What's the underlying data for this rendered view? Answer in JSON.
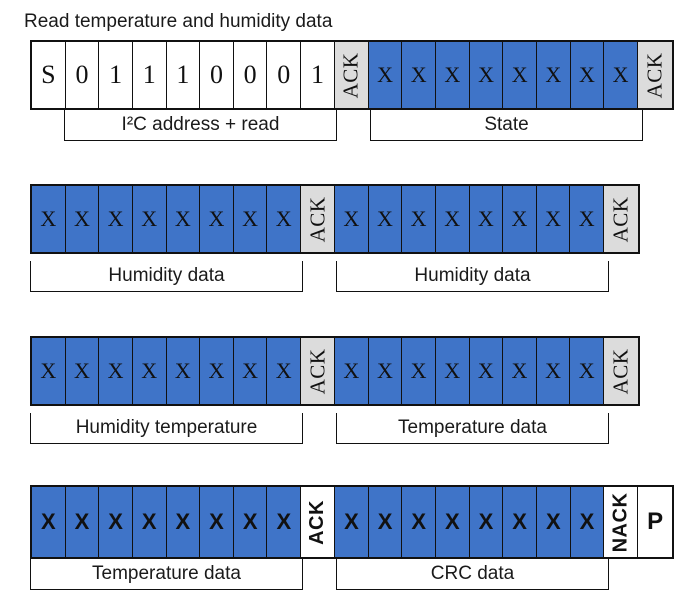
{
  "title": "Read temperature and humidity data",
  "row1": {
    "bits": [
      "S",
      "0",
      "1",
      "1",
      "1",
      "0",
      "0",
      "0",
      "1"
    ],
    "ack1": "ACK",
    "x": [
      "X",
      "X",
      "X",
      "X",
      "X",
      "X",
      "X",
      "X"
    ],
    "ack2": "ACK",
    "label_left": "I²C address + read",
    "label_right": "State"
  },
  "row2": {
    "x_left": [
      "X",
      "X",
      "X",
      "X",
      "X",
      "X",
      "X",
      "X"
    ],
    "ack1": "ACK",
    "x_right": [
      "X",
      "X",
      "X",
      "X",
      "X",
      "X",
      "X",
      "X"
    ],
    "ack2": "ACK",
    "label_left": "Humidity data",
    "label_right": "Humidity data"
  },
  "row3": {
    "x_left": [
      "X",
      "X",
      "X",
      "X",
      "X",
      "X",
      "X",
      "X"
    ],
    "ack1": "ACK",
    "x_right": [
      "X",
      "X",
      "X",
      "X",
      "X",
      "X",
      "X",
      "X"
    ],
    "ack2": "ACK",
    "label_left": "Humidity temperature",
    "label_right": "Temperature data"
  },
  "row4": {
    "x_left": [
      "X",
      "X",
      "X",
      "X",
      "X",
      "X",
      "X",
      "X"
    ],
    "ack": "ACK",
    "x_right": [
      "X",
      "X",
      "X",
      "X",
      "X",
      "X",
      "X",
      "X"
    ],
    "nack": "NACK",
    "stop": "P",
    "label_left": "Temperature data",
    "label_right": "CRC data"
  },
  "colors": {
    "data_bit_fill": "#3f74c8",
    "ack_fill": "#dcdcdc",
    "outline": "#111111"
  }
}
